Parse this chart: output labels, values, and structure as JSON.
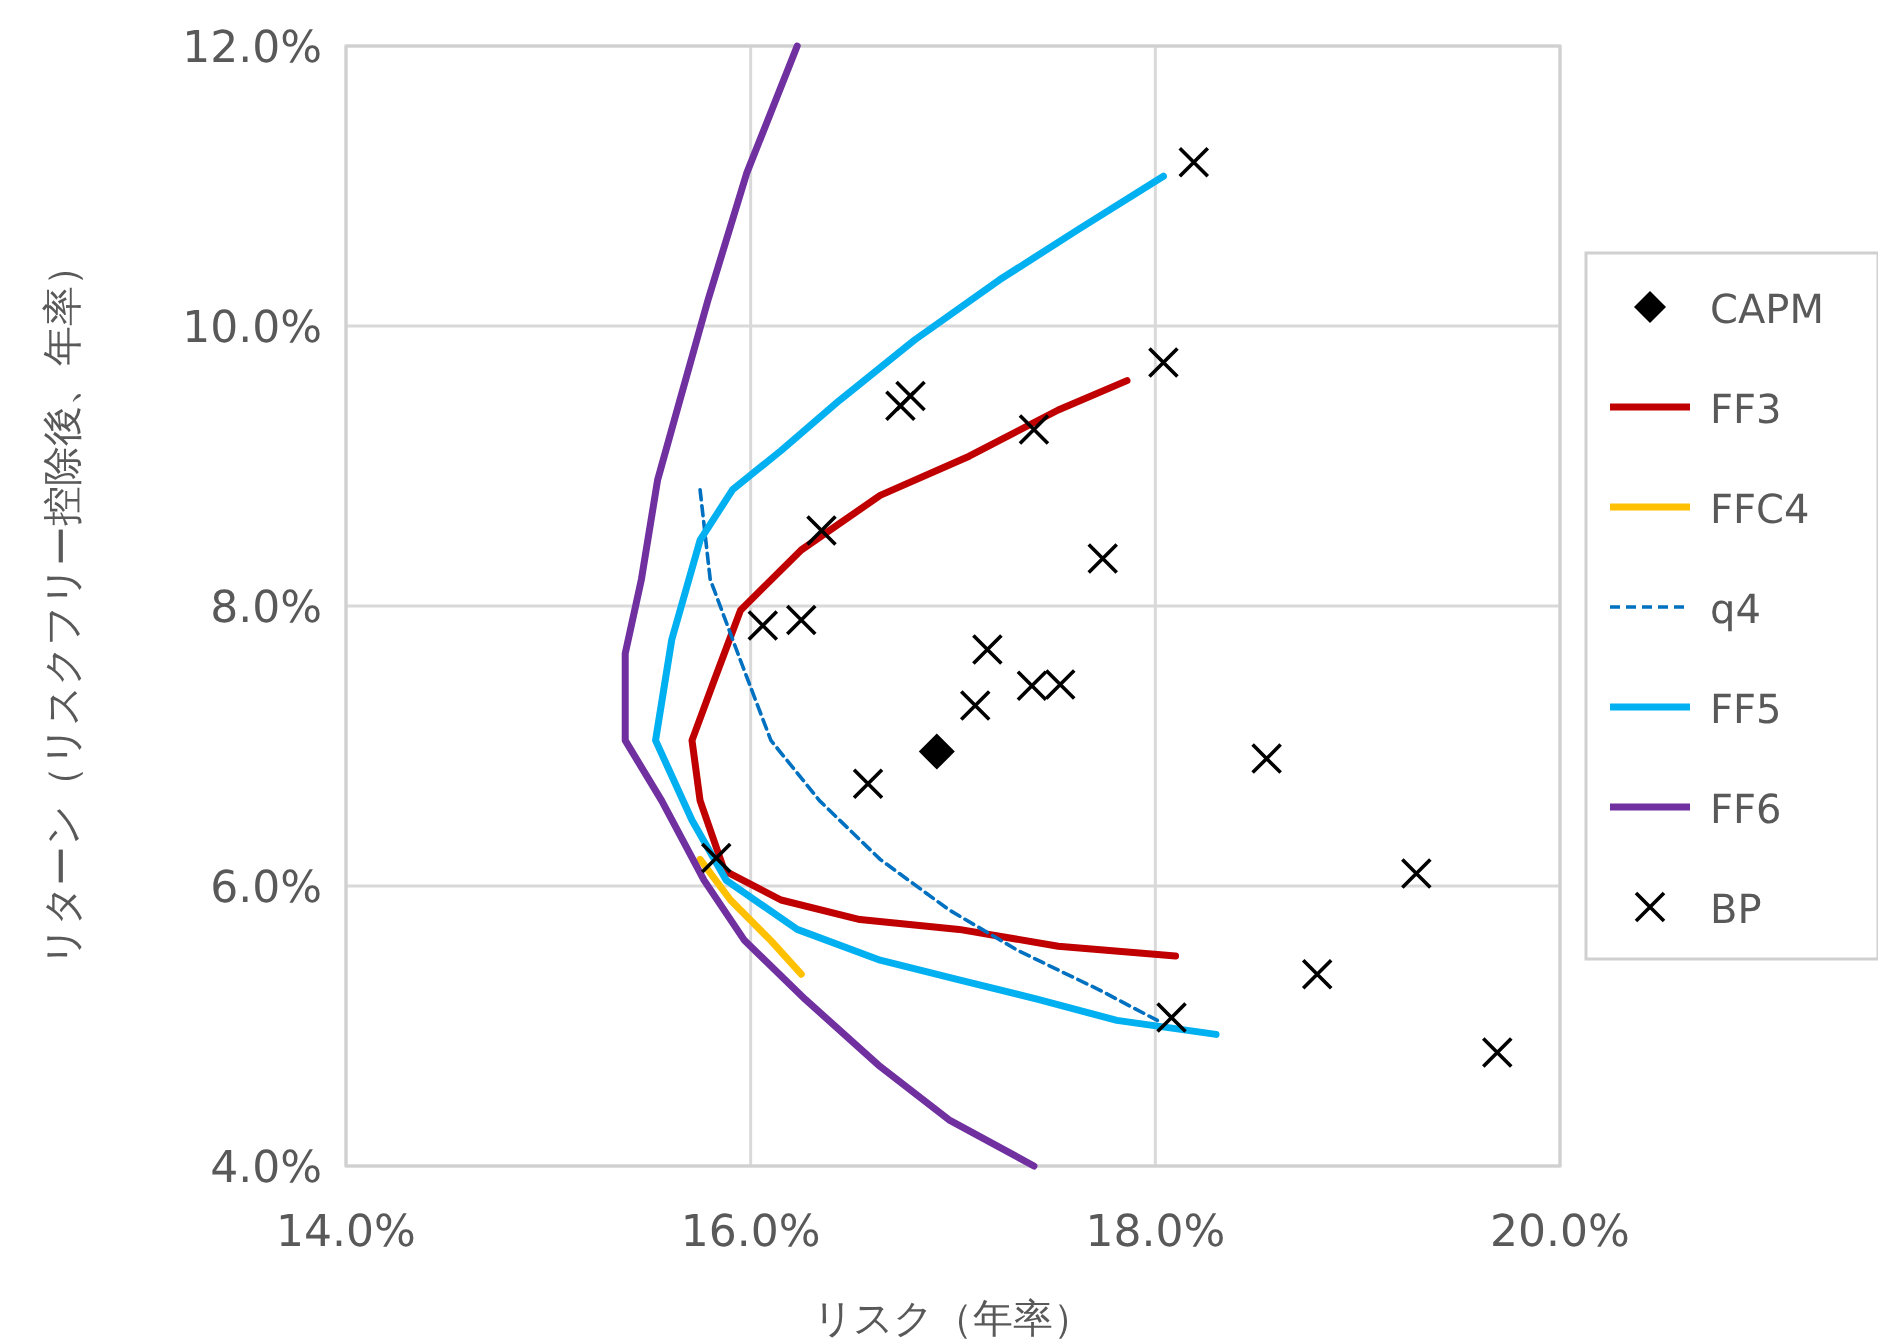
{
  "chart_data": {
    "type": "line",
    "xlabel": "リスク（年率）",
    "ylabel": "リターン（リスクフリー控除後、年率）",
    "xlim": [
      14,
      20
    ],
    "ylim": [
      4,
      12
    ],
    "xticks": [
      {
        "value": 14,
        "label": "14.0%"
      },
      {
        "value": 16,
        "label": "16.0%"
      },
      {
        "value": 18,
        "label": "18.0%"
      },
      {
        "value": 20,
        "label": "20.0%"
      }
    ],
    "yticks": [
      {
        "value": 4,
        "label": "4.0%"
      },
      {
        "value": 6,
        "label": "6.0%"
      },
      {
        "value": 8,
        "label": "8.0%"
      },
      {
        "value": 10,
        "label": "10.0%"
      },
      {
        "value": 12,
        "label": "12.0%"
      }
    ],
    "grid": true,
    "legend": "right",
    "series": [
      {
        "name": "CAPM",
        "type": "scatter",
        "marker": "diamond",
        "color": "#000000",
        "x": [
          16.92
        ],
        "values": [
          6.96
        ]
      },
      {
        "name": "FF3",
        "marker": "none",
        "line_style": "solid",
        "color": "#c00000",
        "x": [
          17.86,
          17.52,
          17.08,
          16.64,
          16.25,
          15.95,
          15.82,
          15.71,
          15.75,
          15.87,
          16.15,
          16.54,
          17.03,
          17.52,
          18.1
        ],
        "values": [
          9.61,
          9.4,
          9.07,
          8.79,
          8.4,
          7.97,
          7.47,
          7.04,
          6.61,
          6.11,
          5.9,
          5.76,
          5.69,
          5.57,
          5.5
        ]
      },
      {
        "name": "FFC4",
        "marker": "none",
        "line_style": "solid",
        "color": "#ffc000",
        "x": [
          15.75,
          15.9,
          16.1,
          16.25
        ],
        "values": [
          6.19,
          5.9,
          5.61,
          5.37
        ]
      },
      {
        "name": "q4",
        "marker": "none",
        "line_style": "dashed",
        "color": "#0070c0",
        "x": [
          15.75,
          15.8,
          15.95,
          16.1,
          16.34,
          16.64,
          16.98,
          17.32,
          17.72,
          18.01
        ],
        "values": [
          8.83,
          8.19,
          7.61,
          7.04,
          6.61,
          6.19,
          5.83,
          5.54,
          5.26,
          5.04
        ]
      },
      {
        "name": "FF5",
        "marker": "none",
        "line_style": "solid",
        "color": "#00b0f0",
        "x": [
          18.04,
          17.62,
          17.23,
          16.81,
          16.44,
          16.15,
          15.91,
          15.75,
          15.61,
          15.53,
          15.71,
          15.88,
          16.23,
          16.64,
          17.03,
          17.42,
          17.81,
          18.3
        ],
        "values": [
          11.07,
          10.69,
          10.33,
          9.9,
          9.47,
          9.11,
          8.83,
          8.47,
          7.76,
          7.04,
          6.47,
          6.04,
          5.69,
          5.47,
          5.33,
          5.19,
          5.04,
          4.94
        ]
      },
      {
        "name": "FF6",
        "marker": "none",
        "line_style": "solid",
        "color": "#7030a0",
        "x": [
          16.23,
          15.98,
          15.79,
          15.65,
          15.54,
          15.46,
          15.38,
          15.38,
          15.56,
          15.77,
          15.97,
          16.27,
          16.64,
          16.98,
          17.4
        ],
        "values": [
          12.0,
          11.09,
          10.19,
          9.47,
          8.9,
          8.19,
          7.66,
          7.04,
          6.61,
          6.04,
          5.61,
          5.19,
          4.71,
          4.33,
          4.0
        ]
      },
      {
        "name": "BP",
        "type": "scatter",
        "marker": "cross",
        "color": "#000000",
        "x": [
          18.19,
          18.04,
          16.74,
          16.79,
          17.4,
          17.74,
          16.35,
          16.06,
          16.25,
          17.17,
          17.11,
          17.39,
          17.53,
          16.58,
          15.83,
          18.55,
          19.29,
          18.8,
          18.08,
          19.69
        ],
        "values": [
          11.17,
          9.74,
          9.43,
          9.5,
          9.26,
          8.34,
          8.54,
          7.86,
          7.9,
          7.69,
          7.29,
          7.43,
          7.44,
          6.73,
          6.2,
          6.91,
          6.09,
          5.37,
          5.06,
          4.81
        ]
      }
    ]
  }
}
